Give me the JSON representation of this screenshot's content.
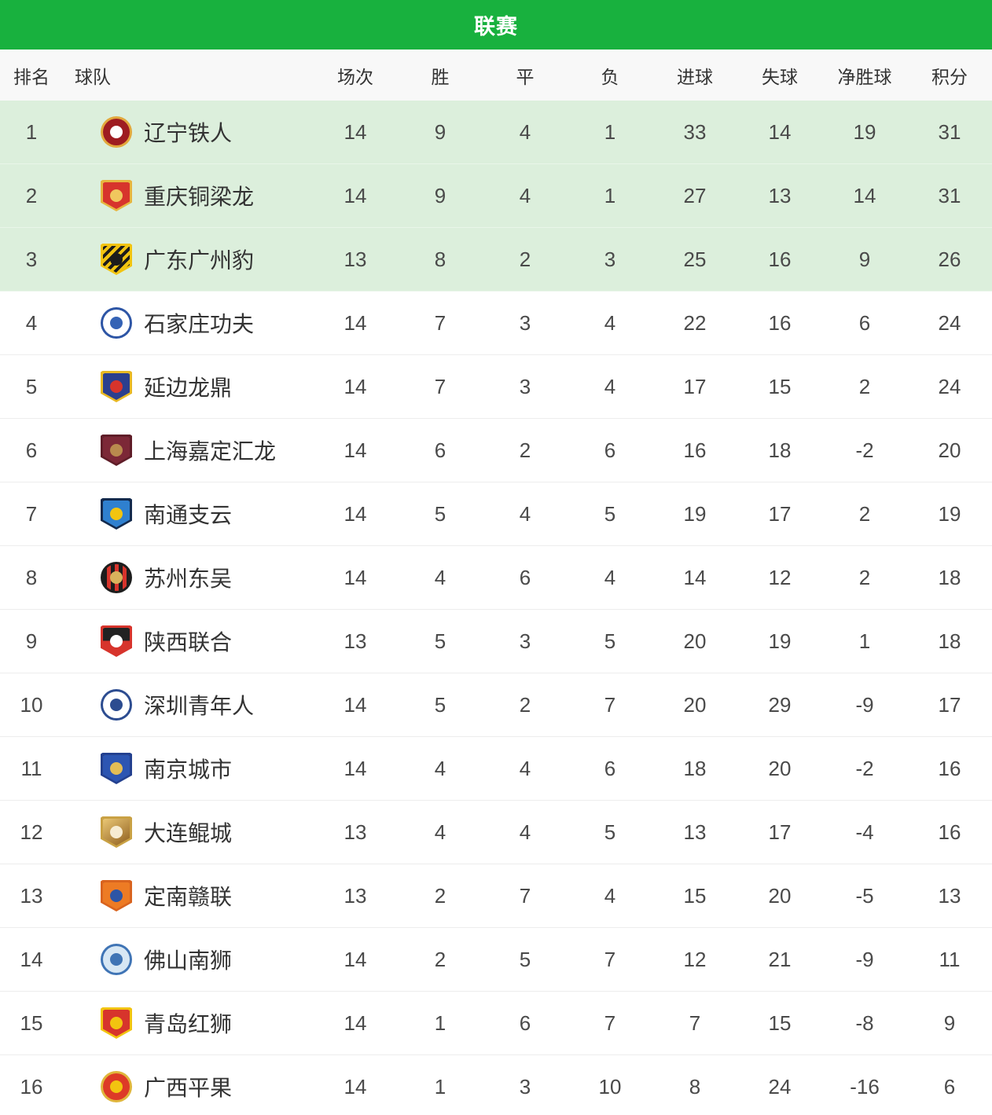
{
  "header": {
    "title": "联赛",
    "bg_color": "#18b13e",
    "text_color": "#ffffff"
  },
  "table": {
    "columns": [
      "排名",
      "球队",
      "场次",
      "胜",
      "平",
      "负",
      "进球",
      "失球",
      "净胜球",
      "积分"
    ],
    "highlight_top_n": 3,
    "highlight_color": "#dcefdc",
    "rows": [
      {
        "rank": 1,
        "team": "辽宁铁人",
        "played": 14,
        "won": 9,
        "drawn": 4,
        "lost": 1,
        "goals_for": 33,
        "goals_against": 14,
        "goal_diff": 19,
        "points": 31,
        "logo": {
          "icon": "liaoning-tieren-crest-icon",
          "shape": "circle",
          "pattern": "solid",
          "ring": "#e2a83d",
          "body": "#9e1c21",
          "body2": "#9e1c21",
          "emblem": "#ffffff"
        }
      },
      {
        "rank": 2,
        "team": "重庆铜梁龙",
        "played": 14,
        "won": 9,
        "drawn": 4,
        "lost": 1,
        "goals_for": 27,
        "goals_against": 13,
        "goal_diff": 14,
        "points": 31,
        "logo": {
          "icon": "chongqing-tongliang-crest-icon",
          "shape": "shield",
          "pattern": "solid",
          "ring": "#e7b53f",
          "body": "#d7342c",
          "body2": "#d7342c",
          "emblem": "#f0c75e"
        }
      },
      {
        "rank": 3,
        "team": "广东广州豹",
        "played": 13,
        "won": 8,
        "drawn": 2,
        "lost": 3,
        "goals_for": 25,
        "goals_against": 16,
        "goal_diff": 9,
        "points": 26,
        "logo": {
          "icon": "guangzhou-leopard-crest-icon",
          "shape": "shield",
          "pattern": "stripes-diag",
          "ring": "#f2c410",
          "body": "#1c1c1c",
          "body2": "#f2c410",
          "emblem": "#1c1c1c"
        }
      },
      {
        "rank": 4,
        "team": "石家庄功夫",
        "played": 14,
        "won": 7,
        "drawn": 3,
        "lost": 4,
        "goals_for": 22,
        "goals_against": 16,
        "goal_diff": 6,
        "points": 24,
        "logo": {
          "icon": "shijiazhuang-kungfu-crest-icon",
          "shape": "circle",
          "pattern": "solid",
          "ring": "#2d55a5",
          "body": "#ffffff",
          "body2": "#ffffff",
          "emblem": "#3563b5"
        }
      },
      {
        "rank": 5,
        "team": "延边龙鼎",
        "played": 14,
        "won": 7,
        "drawn": 3,
        "lost": 4,
        "goals_for": 17,
        "goals_against": 15,
        "goal_diff": 2,
        "points": 24,
        "logo": {
          "icon": "yanbian-longding-crest-icon",
          "shape": "shield",
          "pattern": "solid",
          "ring": "#e8b824",
          "body": "#2b3f8e",
          "body2": "#2b3f8e",
          "emblem": "#d7342c"
        }
      },
      {
        "rank": 6,
        "team": "上海嘉定汇龙",
        "played": 14,
        "won": 6,
        "drawn": 2,
        "lost": 6,
        "goals_for": 16,
        "goals_against": 18,
        "goal_diff": -2,
        "points": 20,
        "logo": {
          "icon": "shanghai-jiading-crest-icon",
          "shape": "shield",
          "pattern": "solid",
          "ring": "#5f1d28",
          "body": "#7c2837",
          "body2": "#7c2837",
          "emblem": "#b98a4e"
        }
      },
      {
        "rank": 7,
        "team": "南通支云",
        "played": 14,
        "won": 5,
        "drawn": 4,
        "lost": 5,
        "goals_for": 19,
        "goals_against": 17,
        "goal_diff": 2,
        "points": 19,
        "logo": {
          "icon": "nantong-zhiyun-crest-icon",
          "shape": "shield",
          "pattern": "solid",
          "ring": "#132a4d",
          "body": "#2f80cf",
          "body2": "#2f80cf",
          "emblem": "#f2c410"
        }
      },
      {
        "rank": 8,
        "team": "苏州东吴",
        "played": 14,
        "won": 4,
        "drawn": 6,
        "lost": 4,
        "goals_for": 14,
        "goals_against": 12,
        "goal_diff": 2,
        "points": 18,
        "logo": {
          "icon": "suzhou-dongwu-crest-icon",
          "shape": "circle",
          "pattern": "stripes-vert",
          "ring": "#1d1d1d",
          "body": "#1d1d1d",
          "body2": "#d7342c",
          "emblem": "#d9b35c"
        }
      },
      {
        "rank": 9,
        "team": "陕西联合",
        "played": 13,
        "won": 5,
        "drawn": 3,
        "lost": 5,
        "goals_for": 20,
        "goals_against": 19,
        "goal_diff": 1,
        "points": 18,
        "logo": {
          "icon": "shaanxi-union-crest-icon",
          "shape": "shield",
          "pattern": "split",
          "ring": "#d7342c",
          "body": "#222222",
          "body2": "#d7342c",
          "emblem": "#ffffff"
        }
      },
      {
        "rank": 10,
        "team": "深圳青年人",
        "played": 14,
        "won": 5,
        "drawn": 2,
        "lost": 7,
        "goals_for": 20,
        "goals_against": 29,
        "goal_diff": -9,
        "points": 17,
        "logo": {
          "icon": "shenzhen-juniors-crest-icon",
          "shape": "circle",
          "pattern": "solid",
          "ring": "#2c4c90",
          "body": "#ffffff",
          "body2": "#ffffff",
          "emblem": "#2c4c90"
        }
      },
      {
        "rank": 11,
        "team": "南京城市",
        "played": 14,
        "won": 4,
        "drawn": 4,
        "lost": 6,
        "goals_for": 18,
        "goals_against": 20,
        "goal_diff": -2,
        "points": 16,
        "logo": {
          "icon": "nanjing-city-crest-icon",
          "shape": "shield",
          "pattern": "solid",
          "ring": "#23408f",
          "body": "#2c55b2",
          "body2": "#2c55b2",
          "emblem": "#e3bd55"
        }
      },
      {
        "rank": 12,
        "team": "大连鲲城",
        "played": 13,
        "won": 4,
        "drawn": 4,
        "lost": 5,
        "goals_for": 13,
        "goals_against": 17,
        "goal_diff": -4,
        "points": 16,
        "logo": {
          "icon": "dalian-kuncheng-crest-icon",
          "shape": "shield",
          "pattern": "grad",
          "ring": "#c9a144",
          "body": "#eac775",
          "body2": "#8e5e1e",
          "emblem": "#f7ecd2"
        }
      },
      {
        "rank": 13,
        "team": "定南赣联",
        "played": 13,
        "won": 2,
        "drawn": 7,
        "lost": 4,
        "goals_for": 15,
        "goals_against": 20,
        "goal_diff": -5,
        "points": 13,
        "logo": {
          "icon": "dingnan-ganlian-crest-icon",
          "shape": "shield",
          "pattern": "solid",
          "ring": "#d9641f",
          "body": "#ed7b24",
          "body2": "#ed7b24",
          "emblem": "#2d55a5"
        }
      },
      {
        "rank": 14,
        "team": "佛山南狮",
        "played": 14,
        "won": 2,
        "drawn": 5,
        "lost": 7,
        "goals_for": 12,
        "goals_against": 21,
        "goal_diff": -9,
        "points": 11,
        "logo": {
          "icon": "foshan-nanshi-crest-icon",
          "shape": "circle",
          "pattern": "solid",
          "ring": "#3f74b5",
          "body": "#d7e7f4",
          "body2": "#d7e7f4",
          "emblem": "#3f74b5"
        }
      },
      {
        "rank": 15,
        "team": "青岛红狮",
        "played": 14,
        "won": 1,
        "drawn": 6,
        "lost": 7,
        "goals_for": 7,
        "goals_against": 15,
        "goal_diff": -8,
        "points": 9,
        "logo": {
          "icon": "qingdao-redlion-crest-icon",
          "shape": "shield",
          "pattern": "solid",
          "ring": "#f2c410",
          "body": "#d7342c",
          "body2": "#d7342c",
          "emblem": "#f2c410"
        }
      },
      {
        "rank": 16,
        "team": "广西平果",
        "played": 14,
        "won": 1,
        "drawn": 3,
        "lost": 10,
        "goals_for": 8,
        "goals_against": 24,
        "goal_diff": -16,
        "points": 6,
        "logo": {
          "icon": "guangxi-pingguo-crest-icon",
          "shape": "circle",
          "pattern": "solid",
          "ring": "#e0b63c",
          "body": "#dd3a27",
          "body2": "#dd3a27",
          "emblem": "#f2c410"
        }
      }
    ]
  }
}
